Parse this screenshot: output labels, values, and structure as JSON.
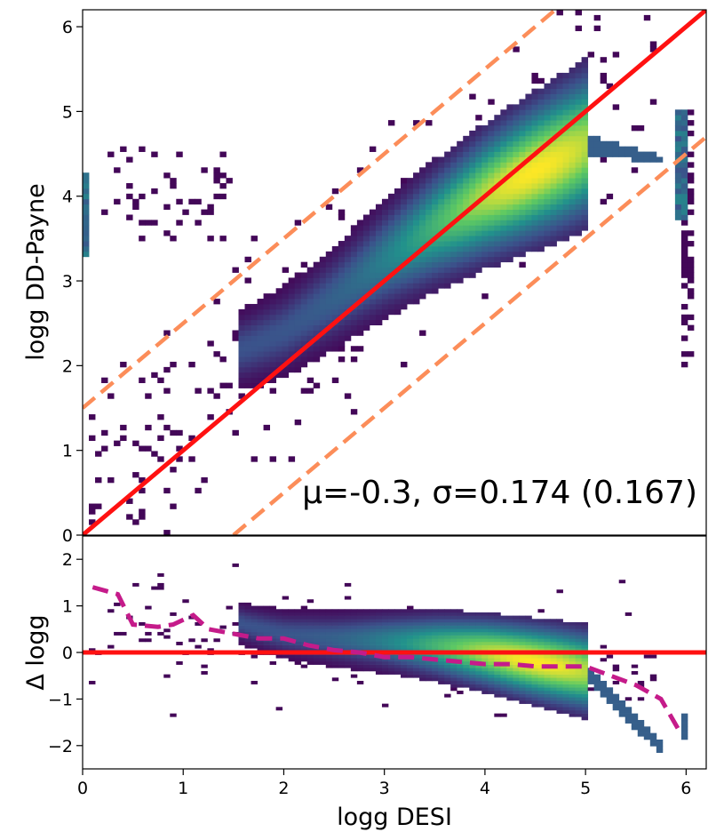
{
  "chart_data": [
    {
      "panel": "top",
      "type": "heatmap",
      "title": "",
      "xlabel": "logg DESI",
      "ylabel": "logg DD-Payne",
      "xlim": [
        0,
        6.2
      ],
      "ylim": [
        0,
        6.2
      ],
      "xticks": [
        0,
        1,
        2,
        3,
        4,
        5,
        6
      ],
      "yticks": [
        0,
        1,
        2,
        3,
        4,
        5,
        6
      ],
      "colormap": [
        "#440154",
        "#3b528b",
        "#21918c",
        "#5ec962",
        "#fde725"
      ],
      "annotation": "μ=-0.3, σ=0.174 (0.167)",
      "density_ridge": {
        "x": [
          1.6,
          2.0,
          2.5,
          3.0,
          3.5,
          4.0,
          4.5,
          5.0
        ],
        "y": [
          2.2,
          2.4,
          2.8,
          3.25,
          3.65,
          4.0,
          4.3,
          4.6
        ]
      },
      "lines": [
        {
          "name": "one-to-one",
          "style": "solid",
          "color": "#ff1111",
          "x": [
            0,
            6.2
          ],
          "y": [
            0,
            6.2
          ]
        },
        {
          "name": "upper offset",
          "style": "dashed",
          "color": "#fc8d59",
          "x": [
            0,
            6.2
          ],
          "y": [
            1.5,
            7.7
          ]
        },
        {
          "name": "lower offset",
          "style": "dashed",
          "color": "#fc8d59",
          "x": [
            1.5,
            6.2
          ],
          "y": [
            0,
            4.7
          ]
        }
      ]
    },
    {
      "panel": "bottom",
      "type": "heatmap",
      "xlabel": "logg DESI",
      "ylabel": "Δ logg",
      "xlim": [
        0,
        6.2
      ],
      "ylim": [
        -2.5,
        2.5
      ],
      "xticks": [
        0,
        1,
        2,
        3,
        4,
        5,
        6
      ],
      "yticks": [
        -2,
        -1,
        0,
        1,
        2
      ],
      "zero_line": {
        "y": 0,
        "color": "#ff1111"
      },
      "median_line": {
        "color": "#c51b8a",
        "x": [
          0.1,
          0.35,
          0.5,
          0.75,
          0.9,
          1.1,
          1.25,
          1.5,
          1.75,
          2.0,
          2.25,
          2.5,
          2.75,
          3.0,
          3.25,
          3.5,
          3.75,
          4.0,
          4.25,
          4.5,
          4.75,
          5.0,
          5.25,
          5.5,
          5.75,
          5.95
        ],
        "y": [
          1.4,
          1.25,
          0.6,
          0.55,
          0.6,
          0.8,
          0.5,
          0.4,
          0.3,
          0.3,
          0.15,
          0.05,
          0.0,
          -0.1,
          -0.1,
          -0.15,
          -0.2,
          -0.25,
          -0.25,
          -0.3,
          -0.3,
          -0.3,
          -0.5,
          -0.7,
          -1.0,
          -1.75
        ]
      }
    }
  ]
}
